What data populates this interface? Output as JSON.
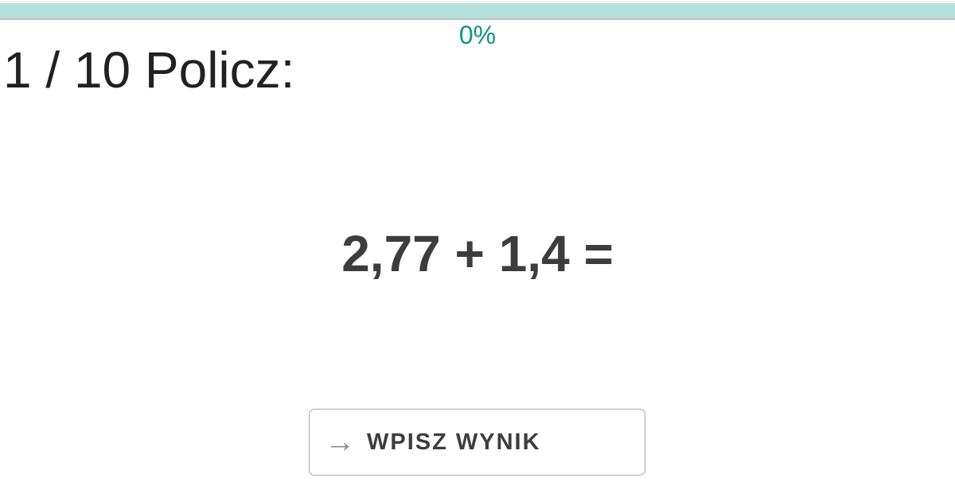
{
  "page": {
    "background_color": "#ffffff"
  },
  "progress": {
    "percent": "0%",
    "value": 0,
    "track_color": "#b5dfdb",
    "accent_color": "#0d9488"
  },
  "question": {
    "counter": "1 / 10",
    "prompt": "Policz:",
    "expression": "2,77 + 1,4 ="
  },
  "answer_button": {
    "arrow_icon": "→",
    "label": "WPISZ WYNIK",
    "border_color": "#a9a9a9",
    "text_color": "#3d3d3d",
    "icon_color": "#8c8c8c"
  }
}
